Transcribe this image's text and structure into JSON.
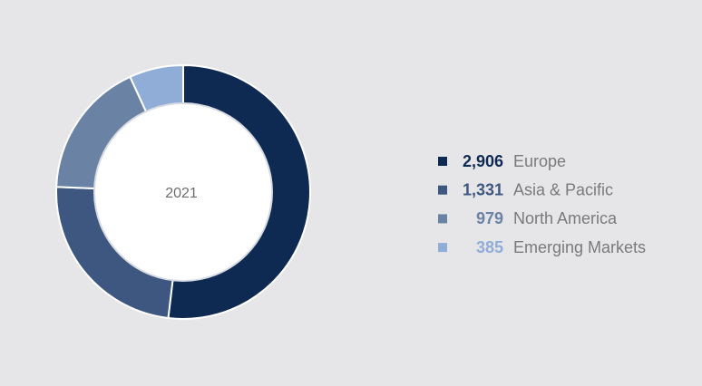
{
  "chart_data": {
    "type": "pie",
    "donut": true,
    "center_label": "2021",
    "categories": [
      "Europe",
      "Asia & Pacific",
      "North America",
      "Emerging Markets"
    ],
    "values": [
      2906,
      1331,
      979,
      385
    ],
    "value_labels": [
      "2,906",
      "1,331",
      "979",
      "385"
    ],
    "colors": [
      "#0f2a52",
      "#3d5780",
      "#6a82a3",
      "#8fadd6"
    ]
  }
}
